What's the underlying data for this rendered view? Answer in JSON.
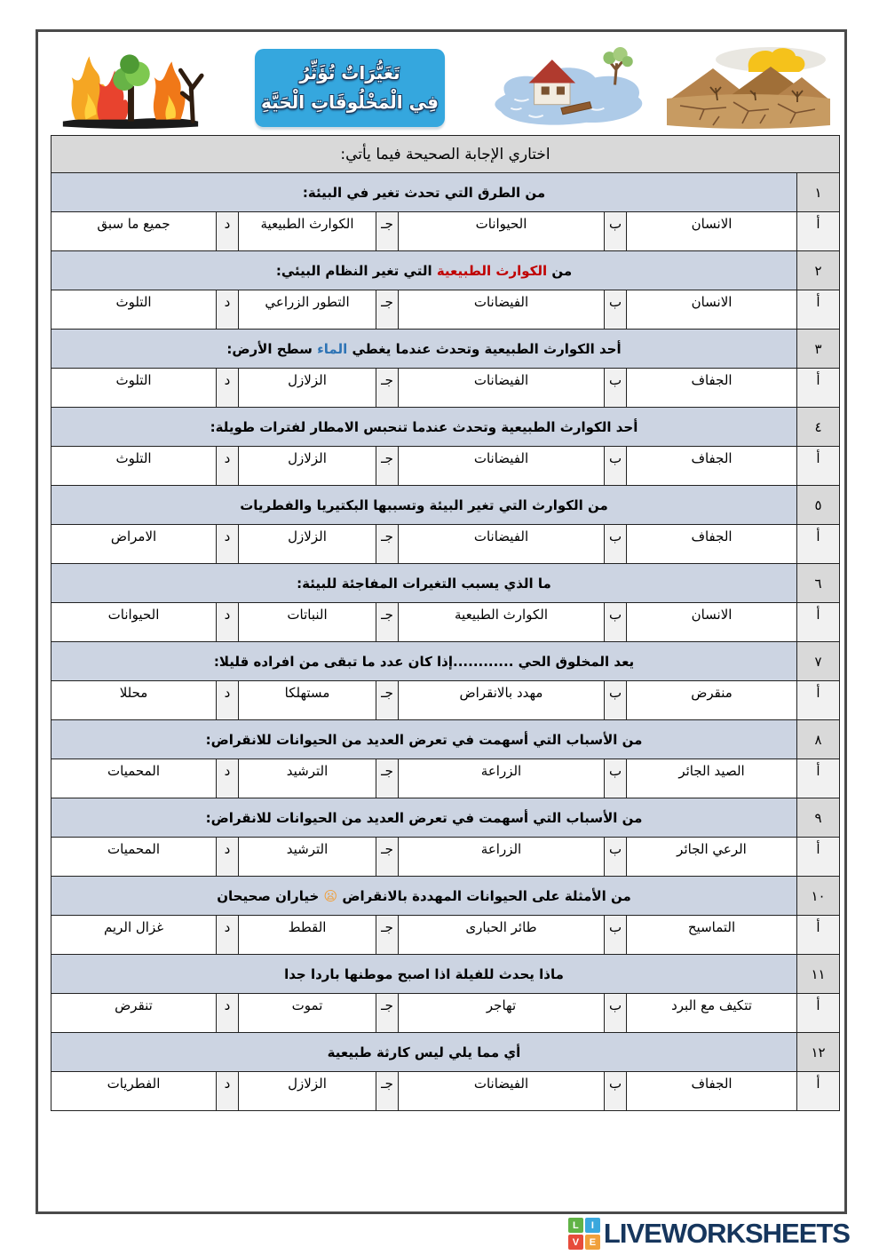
{
  "header": {
    "title_line1": "تَغَيُّرَاتٌ تُؤَثِّرُ",
    "title_line2": "فِي الْمَخْلُوقَاتِ الْحَيَّةِ",
    "illustrations": [
      "forest-fire-illustration",
      "flood-illustration",
      "drought-illustration"
    ]
  },
  "instruction": "اختاري الإجابة الصحيحة فيما يأتي:",
  "option_letters": [
    "أ",
    "ب",
    "جـ",
    "د"
  ],
  "questions": [
    {
      "number": "١",
      "title_parts": [
        {
          "text": "من الطرق التي تحدث تغير في البيئة:"
        }
      ],
      "options": [
        "الانسان",
        "الحيوانات",
        "الكوارث الطبيعية",
        "جميع ما سبق"
      ]
    },
    {
      "number": "٢",
      "title_parts": [
        {
          "text": "من "
        },
        {
          "text": "الكوارث الطبيعية",
          "color": "#c00000"
        },
        {
          "text": " التي تغير النظام البيئي:"
        }
      ],
      "options": [
        "الانسان",
        "الفيضانات",
        "التطور الزراعي",
        "التلوث"
      ]
    },
    {
      "number": "٣",
      "title_parts": [
        {
          "text": "أحد الكوارث الطبيعية وتحدث عندما يغطي "
        },
        {
          "text": "الماء",
          "color": "#2e74b5"
        },
        {
          "text": " سطح الأرض:"
        }
      ],
      "options": [
        "الجفاف",
        "الفيضانات",
        "الزلازل",
        "التلوث"
      ]
    },
    {
      "number": "٤",
      "title_parts": [
        {
          "text": "أحد الكوارث الطبيعية وتحدث عندما تنحبس الامطار لفترات طويلة:"
        }
      ],
      "options": [
        "الجفاف",
        "الفيضانات",
        "الزلازل",
        "التلوث"
      ]
    },
    {
      "number": "٥",
      "title_parts": [
        {
          "text": "من الكوارث التي تغير البيئة وتسببها البكتيريا والفطريات"
        }
      ],
      "options": [
        "الجفاف",
        "الفيضانات",
        "الزلازل",
        "الامراض"
      ]
    },
    {
      "number": "٦",
      "title_parts": [
        {
          "text": "ما الذي يسبب التغيرات المفاجئة للبيئة:"
        }
      ],
      "options": [
        "الانسان",
        "الكوارث الطبيعية",
        "النباتات",
        "الحيوانات"
      ]
    },
    {
      "number": "٧",
      "title_parts": [
        {
          "text": "يعد المخلوق الحي ............إذا كان عدد ما تبقى من افراده قليلا:"
        }
      ],
      "options": [
        "منقرض",
        "مهدد بالانقراض",
        "مستهلكا",
        "محللا"
      ]
    },
    {
      "number": "٨",
      "title_parts": [
        {
          "text": "من الأسباب التي أسهمت في تعرض العديد من الحيوانات للانقراض:"
        }
      ],
      "options": [
        "الصيد الجائر",
        "الزراعة",
        "الترشيد",
        "المحميات"
      ]
    },
    {
      "number": "٩",
      "title_parts": [
        {
          "text": "من الأسباب التي أسهمت في تعرض العديد من الحيوانات للانقراض:"
        }
      ],
      "options": [
        "الرعي الجائر",
        "الزراعة",
        "الترشيد",
        "المحميات"
      ]
    },
    {
      "number": "١٠",
      "title_parts": [
        {
          "text": "من الأمثلة على الحيوانات المهددة بالانقراض "
        },
        {
          "text": "😦",
          "color": "#f0a03c"
        },
        {
          "text": " خياران صحيحان"
        }
      ],
      "options": [
        "التماسيح",
        "طائر الحبارى",
        "القطط",
        "غزال الريم"
      ]
    },
    {
      "number": "١١",
      "title_parts": [
        {
          "text": "ماذا يحدث للفيلة اذا اصبح موطنها باردا جدا"
        }
      ],
      "options": [
        "تتكيف مع البرد",
        "تهاجر",
        "تموت",
        "تنقرض"
      ]
    },
    {
      "number": "١٢",
      "title_parts": [
        {
          "text": "أي مما يلي ليس كارثة طبيعية"
        }
      ],
      "options": [
        "الجفاف",
        "الفيضانات",
        "الزلازل",
        "الفطريات"
      ]
    }
  ],
  "footer": {
    "brand": "LIVEWORKSHEETS",
    "logo_letters": [
      "L",
      "I",
      "V",
      "E"
    ]
  },
  "colors": {
    "question_band": "#ccd4e2",
    "header_row": "#d9d9d9",
    "number_cell": "#d9d9d9",
    "letter_cell": "#f1f1f1",
    "highlight_red": "#c00000",
    "highlight_blue": "#2e74b5",
    "banner_blue": "#35a7de",
    "brand_navy": "#16365d"
  }
}
